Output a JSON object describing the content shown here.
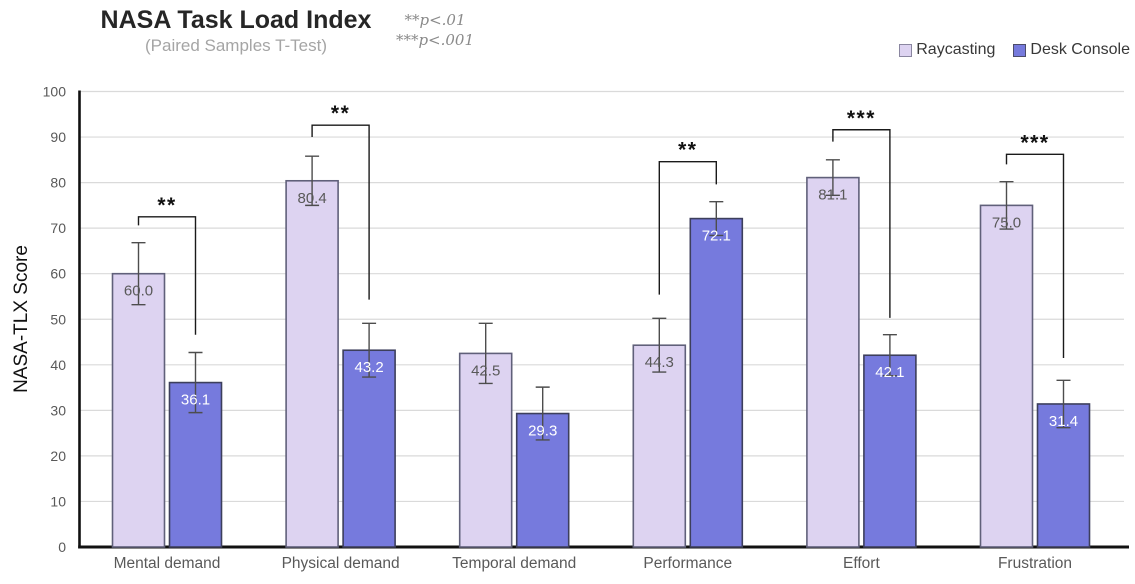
{
  "header": {
    "title": "NASA Task Load Index",
    "subtitle": "(Paired Samples T-Test)",
    "sig_notes": [
      "**p<.01",
      "***p<.001"
    ]
  },
  "colors": {
    "raycasting_fill": "#ddd3f1",
    "raycasting_stroke": "#60607a",
    "desk_console_fill": "#767add",
    "desk_console_stroke": "#3d3f5c",
    "gridline": "#dadada",
    "axis": "#111111",
    "tick_label": "#595959",
    "error_bar": "#4d4d4d",
    "bracket": "#1a1a1a"
  },
  "chart_data": {
    "type": "bar",
    "title": "NASA Task Load Index",
    "subtitle": "(Paired Samples T-Test)",
    "xlabel": "",
    "ylabel": "NASA-TLX Score",
    "ylim": [
      0,
      100
    ],
    "ytick_step": 10,
    "grid": true,
    "legend_position": "top-right",
    "categories": [
      "Mental demand",
      "Physical demand",
      "Temporal demand",
      "Performance",
      "Effort",
      "Frustration"
    ],
    "series": [
      {
        "name": "Raycasting",
        "fill": "#ddd3f1",
        "stroke": "#60607a",
        "label_color": "#595959",
        "values": [
          60.0,
          80.4,
          42.5,
          44.3,
          81.1,
          75.0
        ],
        "errors": [
          6.8,
          5.4,
          6.6,
          5.9,
          3.9,
          5.2
        ]
      },
      {
        "name": "Desk Console",
        "fill": "#767add",
        "stroke": "#3d3f5c",
        "label_color": "#ffffff",
        "values": [
          36.1,
          43.2,
          29.3,
          72.1,
          42.1,
          31.4
        ],
        "errors": [
          6.6,
          5.9,
          5.8,
          3.7,
          4.5,
          5.2
        ]
      }
    ],
    "value_labels": {
      "decimals": 1
    },
    "significance": [
      {
        "category": "Mental demand",
        "stars": "**",
        "bar_y": 72.5,
        "left_drop_to": 70.6,
        "right_drop_to": 46.6
      },
      {
        "category": "Physical demand",
        "stars": "**",
        "bar_y": 92.6,
        "left_drop_to": 90.0,
        "right_drop_to": 54.3
      },
      {
        "category": "Performance",
        "stars": "**",
        "bar_y": 84.6,
        "left_drop_to": 55.4,
        "right_drop_to": 79.6
      },
      {
        "category": "Effort",
        "stars": "***",
        "bar_y": 91.6,
        "left_drop_to": 89.0,
        "right_drop_to": 50.3
      },
      {
        "category": "Frustration",
        "stars": "***",
        "bar_y": 86.2,
        "left_drop_to": 84.0,
        "right_drop_to": 41.5
      }
    ]
  }
}
